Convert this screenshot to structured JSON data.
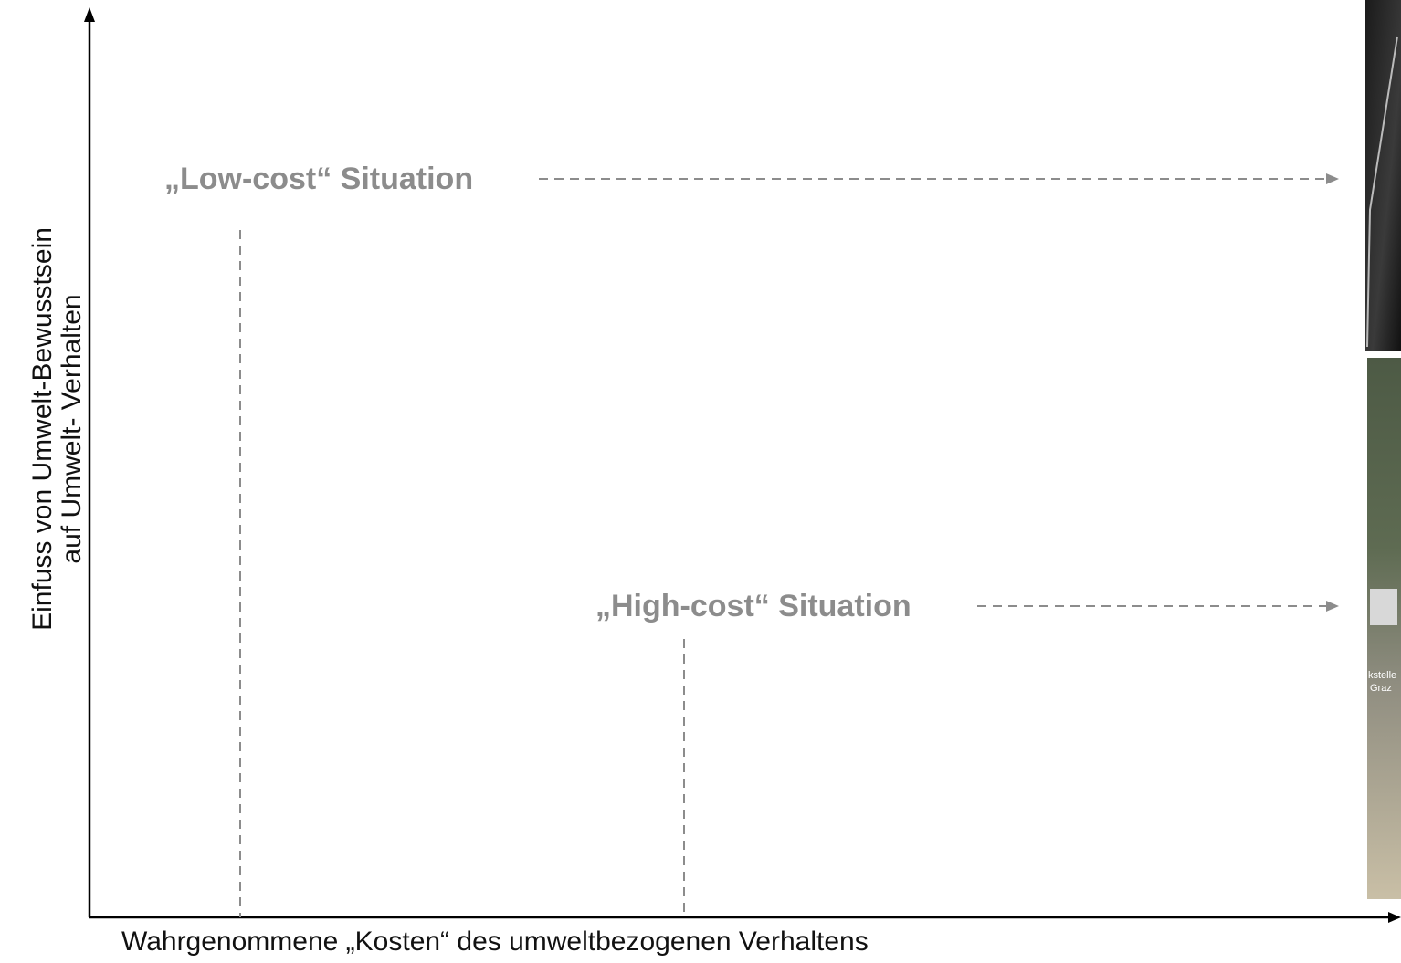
{
  "axes": {
    "y_label": [
      "Einfuss von Umwelt-Bewusstsein",
      "auf Umwelt- Verhalten"
    ],
    "x_label": "Wahrgenommene „Kosten“ des umweltbezogenen Verhaltens"
  },
  "situations": [
    {
      "label": "„Low-cost“ Situation"
    },
    {
      "label": "„High-cost“ Situation"
    }
  ],
  "photos": [
    {
      "labels": []
    },
    {
      "labels": [
        "kstelle",
        "Graz"
      ]
    }
  ]
}
